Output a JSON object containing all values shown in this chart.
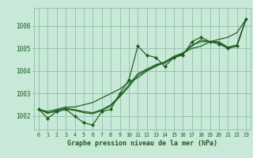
{
  "title": "",
  "xlabel": "Graphe pression niveau de la mer (hPa)",
  "bg_color": "#c8e8d8",
  "grid_color": "#90c0a8",
  "line_color": "#1a5c1a",
  "xlim": [
    -0.5,
    23.5
  ],
  "ylim": [
    1001.4,
    1006.8
  ],
  "yticks": [
    1002,
    1003,
    1004,
    1005,
    1006
  ],
  "xticks": [
    0,
    1,
    2,
    3,
    4,
    5,
    6,
    7,
    8,
    9,
    10,
    11,
    12,
    13,
    14,
    15,
    16,
    17,
    18,
    19,
    20,
    21,
    22,
    23
  ],
  "series_main": [
    1002.3,
    1001.9,
    1002.2,
    1002.3,
    1002.0,
    1001.7,
    1001.6,
    1002.2,
    1002.3,
    1003.0,
    1003.6,
    1005.1,
    1004.7,
    1004.6,
    1004.2,
    1004.6,
    1004.7,
    1005.3,
    1005.5,
    1005.3,
    1005.2,
    1005.0,
    1005.1,
    1006.3
  ],
  "series_smooth": [
    [
      1002.3,
      1002.2,
      1002.3,
      1002.4,
      1002.4,
      1002.5,
      1002.6,
      1002.8,
      1003.0,
      1003.2,
      1003.5,
      1003.7,
      1004.0,
      1004.2,
      1004.4,
      1004.6,
      1004.8,
      1005.0,
      1005.1,
      1005.3,
      1005.4,
      1005.5,
      1005.7,
      1006.3
    ],
    [
      1002.3,
      1002.15,
      1002.2,
      1002.3,
      1002.25,
      1002.15,
      1002.1,
      1002.25,
      1002.45,
      1002.85,
      1003.3,
      1003.8,
      1004.05,
      1004.25,
      1004.35,
      1004.6,
      1004.75,
      1005.15,
      1005.3,
      1005.3,
      1005.3,
      1005.05,
      1005.15,
      1006.3
    ],
    [
      1002.3,
      1002.12,
      1002.25,
      1002.35,
      1002.28,
      1002.2,
      1002.15,
      1002.28,
      1002.5,
      1002.9,
      1003.38,
      1003.88,
      1004.08,
      1004.28,
      1004.4,
      1004.65,
      1004.8,
      1005.1,
      1005.38,
      1005.3,
      1005.25,
      1005.05,
      1005.15,
      1006.3
    ]
  ]
}
